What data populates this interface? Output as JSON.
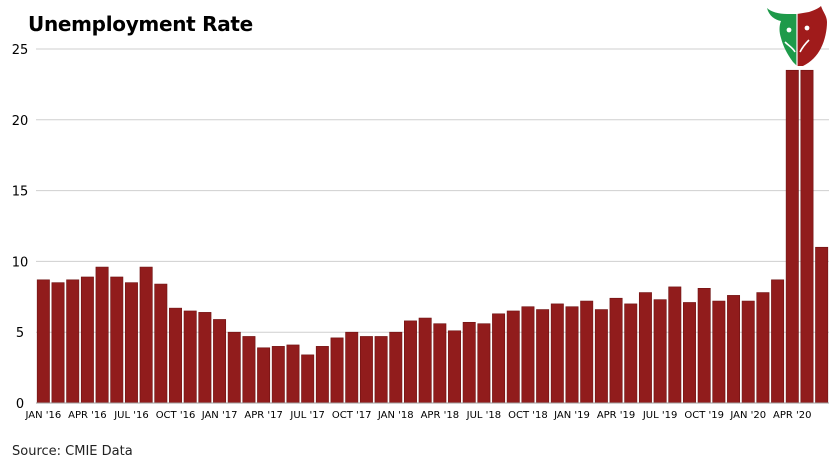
{
  "source_text": "Source: CMIE Data",
  "colors": {
    "bar": "#911c1c",
    "bar_stroke": "#6e1212",
    "grid": "#cfcfcf",
    "axis_text": "#000000",
    "logo_green": "#1e9a4a",
    "logo_red": "#a01b1b"
  },
  "chart_data": {
    "type": "bar",
    "title": "Unemployment Rate",
    "xlabel": "",
    "ylabel": "",
    "ylim": [
      0,
      25
    ],
    "yticks": [
      0,
      5,
      10,
      15,
      20,
      25
    ],
    "grid": true,
    "series": [
      {
        "name": "Unemployment Rate",
        "values": [
          8.7,
          8.5,
          8.7,
          8.9,
          9.6,
          8.9,
          8.5,
          9.6,
          8.4,
          6.7,
          6.5,
          6.4,
          5.9,
          5.0,
          4.7,
          3.9,
          4.0,
          4.1,
          3.4,
          4.0,
          4.6,
          5.0,
          4.7,
          4.7,
          5.0,
          5.8,
          6.0,
          5.6,
          5.1,
          5.7,
          5.6,
          6.3,
          6.5,
          6.8,
          6.6,
          7.0,
          6.8,
          7.2,
          6.6,
          7.4,
          7.0,
          7.8,
          7.3,
          8.2,
          7.1,
          8.1,
          7.2,
          7.6,
          7.2,
          7.8,
          8.7,
          23.5,
          23.5,
          11.0
        ]
      }
    ],
    "x_tick_labels": [
      {
        "index": 0,
        "label": "JAN '16"
      },
      {
        "index": 3,
        "label": "APR '16"
      },
      {
        "index": 6,
        "label": "JUL '16"
      },
      {
        "index": 9,
        "label": "OCT '16"
      },
      {
        "index": 12,
        "label": "JAN '17"
      },
      {
        "index": 15,
        "label": "APR '17"
      },
      {
        "index": 18,
        "label": "JUL '17"
      },
      {
        "index": 21,
        "label": "OCT '17"
      },
      {
        "index": 24,
        "label": "JAN '18"
      },
      {
        "index": 27,
        "label": "APR '18"
      },
      {
        "index": 30,
        "label": "JUL '18"
      },
      {
        "index": 33,
        "label": "OCT '18"
      },
      {
        "index": 36,
        "label": "JAN '19"
      },
      {
        "index": 39,
        "label": "APR '19"
      },
      {
        "index": 42,
        "label": "JUL '19"
      },
      {
        "index": 45,
        "label": "OCT '19"
      },
      {
        "index": 48,
        "label": "JAN '20"
      },
      {
        "index": 51,
        "label": "APR '20"
      }
    ]
  }
}
